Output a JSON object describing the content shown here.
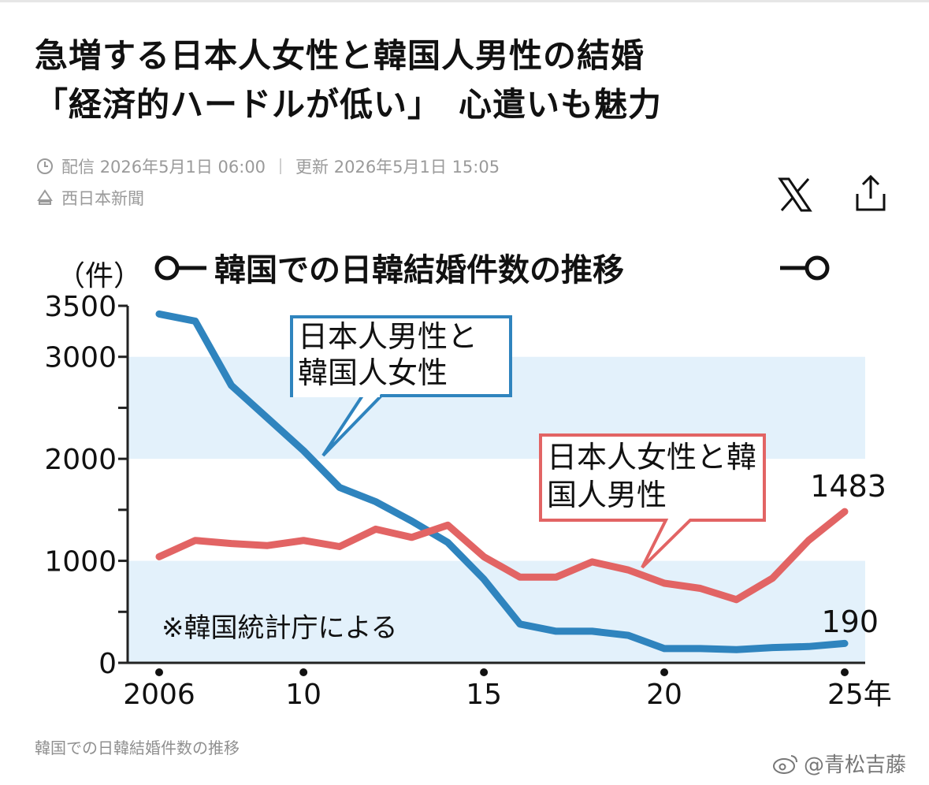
{
  "article": {
    "headline_line1": "急増する日本人女性と韓国人男性の結婚",
    "headline_line2": "「経済的ハードルが低い」　心遣いも魅力",
    "published_label": "配信",
    "published": "2026年5月1日 06:00",
    "published_year": "2026",
    "updated_label": "更新",
    "updated": "2026年5月1日 15:05",
    "updated_year": "2026",
    "source": "西日本新聞",
    "caption": "韓国での日韓結婚件数の推移"
  },
  "actions": {
    "x_icon": "x-logo-icon",
    "share_icon": "share-icon"
  },
  "watermark": "@青松吉藤",
  "chart_data": {
    "type": "line",
    "title": "韓国での日韓結婚件数の推移",
    "ylabel": "（件）",
    "xlabel_suffix": "年",
    "note": "※韓国統計庁による",
    "ylim": [
      0,
      3500
    ],
    "yticks": [
      0,
      1000,
      2000,
      3000,
      3500
    ],
    "xticks": [
      {
        "value": 2006,
        "label": "2006"
      },
      {
        "value": 2010,
        "label": "10"
      },
      {
        "value": 2015,
        "label": "15"
      },
      {
        "value": 2020,
        "label": "20"
      },
      {
        "value": 2025,
        "label": "25年"
      }
    ],
    "x": [
      2006,
      2007,
      2008,
      2009,
      2010,
      2011,
      2012,
      2013,
      2014,
      2015,
      2016,
      2017,
      2018,
      2019,
      2020,
      2021,
      2022,
      2023,
      2024,
      2025
    ],
    "grid": "horizontal bands",
    "series": [
      {
        "name": "日本人男性と韓国人女性",
        "color": "#2f84be",
        "values": [
          3420,
          3350,
          2720,
          2400,
          2080,
          1720,
          1580,
          1390,
          1180,
          820,
          380,
          310,
          310,
          270,
          140,
          140,
          130,
          150,
          160,
          190
        ],
        "end_label": "190"
      },
      {
        "name": "日本人女性と韓国人男性",
        "color": "#e26464",
        "values": [
          1040,
          1200,
          1170,
          1150,
          1200,
          1140,
          1310,
          1230,
          1350,
          1040,
          840,
          840,
          990,
          910,
          780,
          730,
          620,
          830,
          1200,
          1483
        ],
        "end_label": "1483"
      }
    ]
  }
}
